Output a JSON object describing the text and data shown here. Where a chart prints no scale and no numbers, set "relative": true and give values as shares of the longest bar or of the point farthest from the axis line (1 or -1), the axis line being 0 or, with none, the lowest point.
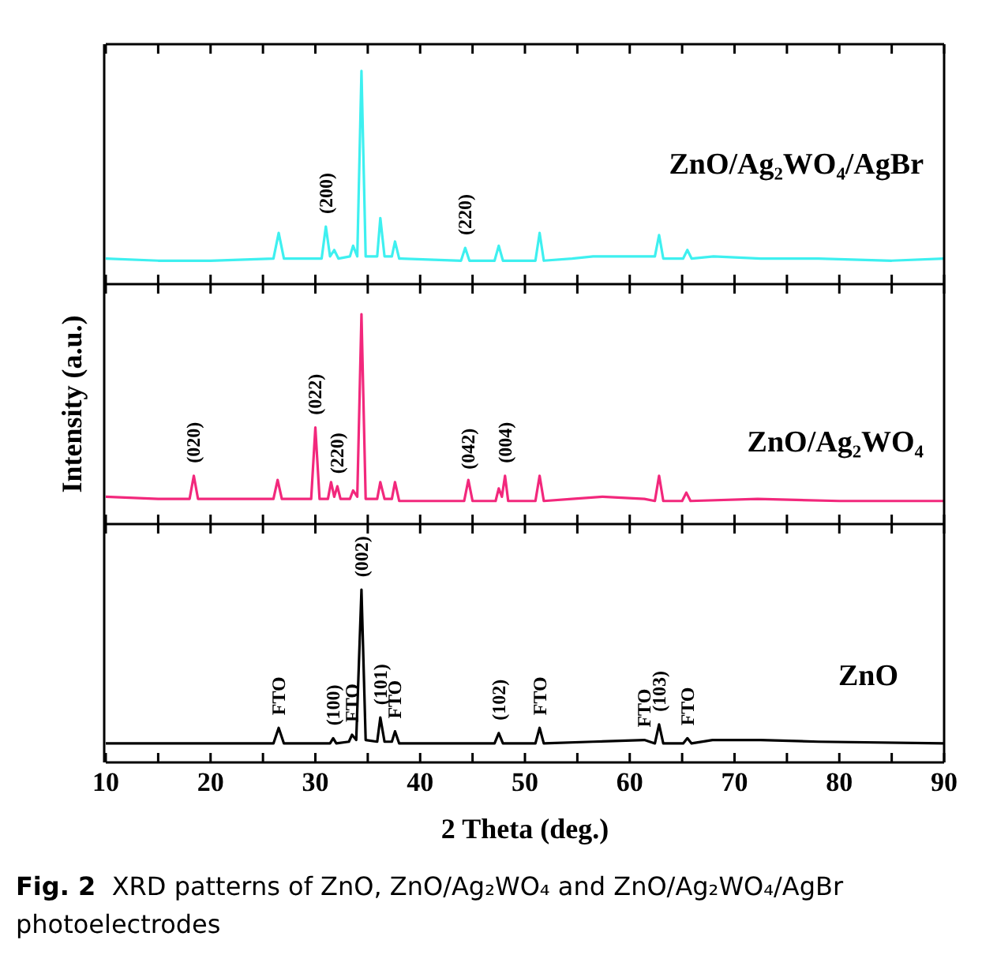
{
  "chart_data": [
    {
      "type": "line",
      "relative": true,
      "tick_labels": false,
      "xlim": [
        10,
        90
      ],
      "xticks": [
        10,
        {
          "value": 15,
          "label": null
        },
        20,
        {
          "value": 25,
          "label": null
        },
        30,
        {
          "value": 35,
          "label": null
        },
        40,
        {
          "value": 45,
          "label": null
        },
        50,
        {
          "value": 55,
          "label": null
        },
        60,
        {
          "value": 65,
          "label": null
        },
        70,
        {
          "value": 75,
          "label": null
        },
        80,
        {
          "value": 85,
          "label": null
        },
        90
      ],
      "x": [
        10,
        15,
        20,
        26.0,
        26.5,
        27.0,
        30.6,
        31.0,
        31.4,
        31.8,
        32.2,
        33.3,
        33.6,
        34.0,
        34.4,
        34.8,
        35.9,
        36.2,
        36.6,
        37.3,
        37.6,
        38.0,
        43.9,
        44.3,
        44.7,
        47.1,
        47.5,
        47.9,
        51.0,
        51.4,
        51.8,
        54.5,
        56.5,
        61.2,
        61.5,
        62.4,
        62.8,
        63.2,
        65.1,
        65.5,
        65.9,
        68.0,
        72.5,
        78.0,
        85,
        90
      ],
      "series": [
        {
          "name": "ZnO/Ag₂WO₄/AgBr",
          "color": "#3ef0f0",
          "values": [
            0.12,
            0.11,
            0.11,
            0.12,
            0.24,
            0.12,
            0.12,
            0.27,
            0.13,
            0.16,
            0.12,
            0.13,
            0.18,
            0.13,
            1,
            0.13,
            0.13,
            0.31,
            0.13,
            0.13,
            0.2,
            0.12,
            0.11,
            0.17,
            0.11,
            0.11,
            0.18,
            0.11,
            0.11,
            0.24,
            0.11,
            0.12,
            0.13,
            0.13,
            0.13,
            0.13,
            0.23,
            0.12,
            0.12,
            0.16,
            0.12,
            0.13,
            0.12,
            0.12,
            0.11,
            0.12
          ]
        }
      ],
      "annotations": [
        {
          "text": "(200)",
          "x": 31.0,
          "y": 0.27
        },
        {
          "text": "(220)",
          "x": 44.3,
          "y": 0.17
        }
      ]
    },
    {
      "type": "line",
      "relative": true,
      "tick_labels": false,
      "xlim": [
        10,
        90
      ],
      "ylabel": "Intensity (a.u.)",
      "xticks": [
        10,
        {
          "value": 15,
          "label": null
        },
        20,
        {
          "value": 25,
          "label": null
        },
        30,
        {
          "value": 35,
          "label": null
        },
        40,
        {
          "value": 45,
          "label": null
        },
        50,
        {
          "value": 55,
          "label": null
        },
        60,
        {
          "value": 65,
          "label": null
        },
        70,
        {
          "value": 75,
          "label": null
        },
        80,
        {
          "value": 85,
          "label": null
        },
        90
      ],
      "x": [
        10,
        15,
        18.0,
        18.4,
        18.8,
        22,
        26.0,
        26.4,
        26.8,
        29.6,
        30.0,
        30.4,
        31.2,
        31.5,
        31.8,
        32.1,
        32.4,
        33.3,
        33.6,
        34.0,
        34.4,
        34.8,
        35.9,
        36.2,
        36.6,
        37.3,
        37.6,
        38.0,
        44.2,
        44.6,
        45.0,
        47.2,
        47.5,
        47.8,
        48.1,
        48.4,
        51.0,
        51.4,
        51.8,
        54.5,
        57.4,
        61.4,
        62.4,
        62.8,
        63.2,
        65.0,
        65.4,
        65.8,
        72.2,
        80,
        90
      ],
      "series": [
        {
          "name": "ZnO/Ag₂WO₄",
          "color": "#f2287c",
          "values": [
            0.13,
            0.12,
            0.12,
            0.23,
            0.12,
            0.12,
            0.12,
            0.21,
            0.12,
            0.12,
            0.46,
            0.12,
            0.12,
            0.2,
            0.13,
            0.18,
            0.12,
            0.12,
            0.16,
            0.13,
            1,
            0.12,
            0.12,
            0.2,
            0.12,
            0.12,
            0.2,
            0.11,
            0.11,
            0.21,
            0.11,
            0.11,
            0.17,
            0.13,
            0.23,
            0.11,
            0.11,
            0.23,
            0.11,
            0.12,
            0.13,
            0.12,
            0.11,
            0.23,
            0.11,
            0.11,
            0.15,
            0.11,
            0.12,
            0.11,
            0.11
          ]
        }
      ],
      "annotations": [
        {
          "text": "(020)",
          "x": 18.4,
          "y": 0.23
        },
        {
          "text": "(022)",
          "x": 30.0,
          "y": 0.46
        },
        {
          "text": "(220)",
          "x": 32.1,
          "y": 0.18
        },
        {
          "text": "(042)",
          "x": 44.6,
          "y": 0.2
        },
        {
          "text": "(004)",
          "x": 48.1,
          "y": 0.23
        }
      ]
    },
    {
      "type": "line",
      "relative": true,
      "xlim": [
        10,
        90
      ],
      "xlabel": "2 Theta (deg.)",
      "xticks": [
        10,
        {
          "value": 15,
          "label": null
        },
        20,
        {
          "value": 25,
          "label": null
        },
        30,
        {
          "value": 35,
          "label": null
        },
        40,
        {
          "value": 45,
          "label": null
        },
        50,
        {
          "value": 55,
          "label": null
        },
        60,
        {
          "value": 65,
          "label": null
        },
        70,
        {
          "value": 75,
          "label": null
        },
        80,
        {
          "value": 85,
          "label": null
        },
        90
      ],
      "x": [
        10,
        15,
        20,
        26.0,
        26.5,
        27.0,
        31.4,
        31.7,
        32.0,
        33.2,
        33.5,
        33.9,
        34.4,
        34.8,
        35.9,
        36.2,
        36.6,
        37.3,
        37.6,
        38.0,
        47.1,
        47.5,
        47.9,
        51.0,
        51.4,
        51.8,
        56.5,
        61.4,
        62.4,
        62.8,
        63.2,
        65.1,
        65.5,
        65.9,
        67.9,
        72.5,
        78,
        90
      ],
      "series": [
        {
          "name": "ZnO",
          "color": "#000000",
          "values": [
            0.11,
            0.11,
            0.11,
            0.11,
            0.2,
            0.11,
            0.11,
            0.14,
            0.11,
            0.12,
            0.16,
            0.13,
            1,
            0.13,
            0.12,
            0.26,
            0.12,
            0.12,
            0.18,
            0.11,
            0.11,
            0.17,
            0.11,
            0.11,
            0.2,
            0.11,
            0.12,
            0.13,
            0.11,
            0.22,
            0.11,
            0.11,
            0.14,
            0.11,
            0.13,
            0.13,
            0.12,
            0.11
          ]
        }
      ],
      "annotations": [
        {
          "text": "FTO",
          "x": 26.5,
          "y": 0.2
        },
        {
          "text": "(100)",
          "x": 31.7,
          "y": 0.14
        },
        {
          "text": "FTO",
          "x": 33.5,
          "y": 0.16
        },
        {
          "text": "(002)",
          "x": 34.4,
          "y": 1
        },
        {
          "text": "(101)",
          "x": 36.2,
          "y": 0.26
        },
        {
          "text": "FTO",
          "x": 37.6,
          "y": 0.18
        },
        {
          "text": "(102)",
          "x": 47.5,
          "y": 0.17
        },
        {
          "text": "FTO",
          "x": 51.4,
          "y": 0.2
        },
        {
          "text": "FTO",
          "x": 61.4,
          "y": 0.13
        },
        {
          "text": "(103)",
          "x": 62.8,
          "y": 0.22
        },
        {
          "text": "FTO",
          "x": 65.5,
          "y": 0.14
        },
        "Fig. 2  XRD patterns of ZnO, ZnO/Ag₂WO₄ and ZnO/Ag₂WO₄/AgBr photoelectrodes"
      ]
    }
  ]
}
